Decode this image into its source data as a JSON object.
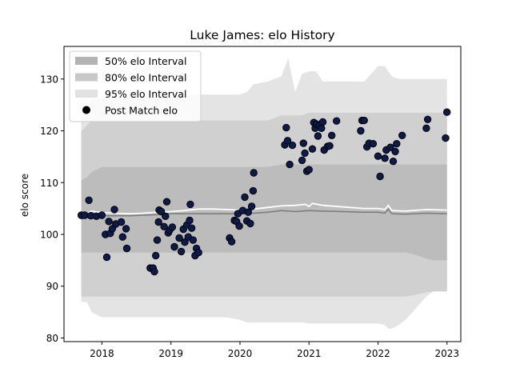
{
  "chart_data": {
    "type": "scatter",
    "title": "Luke James: elo History",
    "xlabel": "",
    "ylabel": "elo score",
    "xlim": [
      2017.45,
      2023.2
    ],
    "ylim": [
      79.3,
      136.3
    ],
    "x_ticks": [
      2018,
      2019,
      2020,
      2021,
      2022,
      2023
    ],
    "x_tick_labels": [
      "2018",
      "2019",
      "2020",
      "2021",
      "2022",
      "2023"
    ],
    "y_ticks": [
      80,
      90,
      100,
      110,
      120,
      130
    ],
    "y_tick_labels": [
      "80",
      "90",
      "100",
      "110",
      "120",
      "130"
    ],
    "grid": false,
    "legend_position": "top-left",
    "legend": [
      {
        "label": "50% elo Interval",
        "swatch": "band",
        "color": "#b3b3b3"
      },
      {
        "label": "80% elo Interval",
        "swatch": "band",
        "color": "#c8c8c8"
      },
      {
        "label": "95% elo Interval",
        "swatch": "band",
        "color": "#e2e2e2"
      },
      {
        "label": "Post Match elo",
        "swatch": "dot",
        "color": "#000000"
      }
    ],
    "colors": {
      "band50": "#bcbcbc",
      "band80": "#d0d0d0",
      "band95": "#e4e4e4",
      "median_line": "#7a7a7a",
      "mean_line": "#ffffff",
      "point_fill": "#0d1b4c",
      "point_edge": "#000000"
    },
    "bands": {
      "x": [
        2017.7,
        2017.78,
        2017.85,
        2018.0,
        2018.1,
        2018.2,
        2018.4,
        2018.6,
        2018.8,
        2019.0,
        2019.2,
        2019.4,
        2019.6,
        2019.8,
        2020.0,
        2020.1,
        2020.2,
        2020.4,
        2020.6,
        2020.7,
        2020.8,
        2020.9,
        2021.0,
        2021.1,
        2021.2,
        2021.3,
        2021.5,
        2021.7,
        2021.8,
        2021.9,
        2022.0,
        2022.1,
        2022.15,
        2022.2,
        2022.3,
        2022.4,
        2022.5,
        2022.6,
        2022.7,
        2022.8,
        2022.9,
        2023.0
      ],
      "p95_low": [
        87.0,
        87.0,
        85.0,
        84.0,
        84.0,
        84.0,
        84.0,
        84.0,
        84.0,
        84.0,
        84.0,
        84.0,
        84.0,
        84.0,
        83.5,
        83.0,
        83.0,
        83.0,
        83.0,
        83.0,
        83.0,
        83.0,
        82.8,
        82.8,
        82.8,
        82.8,
        82.8,
        82.8,
        82.8,
        82.8,
        82.8,
        82.5,
        81.8,
        81.8,
        82.5,
        83.5,
        85.0,
        86.5,
        88.0,
        89.0,
        89.0,
        89.0
      ],
      "p80_low": [
        88.0,
        88.0,
        88.0,
        88.0,
        88.0,
        88.0,
        88.0,
        88.0,
        88.0,
        88.0,
        88.0,
        88.0,
        88.0,
        88.0,
        88.0,
        88.0,
        88.0,
        88.0,
        88.0,
        88.0,
        88.0,
        88.0,
        88.0,
        88.0,
        88.0,
        88.0,
        88.0,
        88.0,
        88.0,
        88.0,
        88.0,
        88.0,
        88.0,
        88.0,
        88.0,
        88.0,
        88.2,
        88.5,
        88.8,
        89.0,
        89.0,
        89.0
      ],
      "p50_low": [
        96.5,
        96.5,
        96.5,
        96.5,
        96.5,
        96.5,
        96.5,
        96.5,
        96.5,
        96.5,
        96.5,
        96.5,
        96.5,
        96.5,
        96.5,
        96.5,
        96.5,
        96.5,
        96.5,
        96.5,
        96.5,
        96.5,
        96.5,
        96.5,
        96.5,
        96.5,
        96.5,
        96.5,
        96.5,
        96.5,
        96.5,
        96.5,
        96.5,
        96.5,
        96.5,
        96.5,
        96.2,
        95.8,
        95.3,
        95.0,
        95.0,
        95.0
      ],
      "p50_high": [
        110.5,
        111.0,
        112.0,
        113.0,
        113.0,
        113.0,
        113.0,
        113.0,
        113.0,
        113.0,
        113.0,
        113.0,
        113.0,
        113.0,
        113.0,
        113.0,
        113.0,
        113.0,
        113.5,
        113.5,
        113.5,
        113.5,
        113.5,
        113.5,
        113.5,
        113.5,
        113.5,
        113.5,
        113.5,
        113.5,
        113.5,
        113.5,
        113.5,
        113.5,
        113.5,
        113.5,
        113.5,
        113.5,
        113.5,
        113.5,
        113.5,
        113.5
      ],
      "p80_high": [
        120.0,
        121.0,
        122.0,
        122.0,
        122.0,
        122.0,
        122.0,
        122.0,
        122.0,
        122.0,
        122.0,
        122.0,
        122.0,
        122.0,
        122.0,
        122.0,
        122.0,
        122.0,
        123.0,
        123.0,
        123.0,
        123.0,
        123.5,
        123.5,
        123.5,
        123.5,
        123.5,
        123.5,
        123.5,
        123.5,
        123.5,
        123.5,
        123.5,
        123.5,
        123.5,
        123.5,
        123.5,
        123.5,
        123.5,
        123.5,
        123.5,
        123.5
      ],
      "p95_high": [
        122.5,
        124.5,
        126.0,
        126.5,
        126.5,
        126.5,
        126.5,
        126.5,
        126.5,
        126.5,
        126.8,
        127.0,
        127.0,
        127.0,
        127.0,
        127.5,
        129.0,
        129.5,
        130.5,
        134.0,
        127.5,
        131.0,
        131.5,
        131.5,
        129.5,
        129.5,
        129.5,
        129.5,
        129.5,
        131.0,
        132.5,
        132.5,
        131.5,
        130.5,
        130.0,
        130.0,
        130.0,
        130.0,
        130.0,
        130.0,
        130.0,
        130.0
      ]
    },
    "median_line": {
      "x": [
        2017.7,
        2017.85,
        2018.0,
        2018.4,
        2018.8,
        2019.0,
        2019.4,
        2019.8,
        2020.0,
        2020.2,
        2020.4,
        2020.6,
        2020.8,
        2021.0,
        2021.2,
        2021.5,
        2021.8,
        2022.0,
        2022.1,
        2022.15,
        2022.2,
        2022.4,
        2022.7,
        2023.0
      ],
      "y": [
        103.0,
        103.4,
        103.6,
        103.6,
        103.8,
        104.0,
        104.0,
        104.0,
        104.0,
        104.1,
        104.3,
        104.6,
        104.4,
        104.6,
        104.5,
        104.4,
        104.3,
        104.3,
        104.1,
        104.9,
        104.0,
        103.9,
        104.1,
        104.0
      ]
    },
    "mean_line": {
      "x": [
        2017.7,
        2017.85,
        2018.0,
        2018.2,
        2018.4,
        2018.6,
        2018.8,
        2019.0,
        2019.2,
        2019.4,
        2019.6,
        2019.8,
        2020.0,
        2020.2,
        2020.4,
        2020.6,
        2020.8,
        2020.95,
        2021.0,
        2021.05,
        2021.2,
        2021.5,
        2021.8,
        2022.0,
        2022.1,
        2022.15,
        2022.2,
        2022.4,
        2022.7,
        2023.0
      ],
      "y": [
        103.5,
        104.5,
        104.2,
        104.1,
        104.0,
        104.1,
        104.3,
        104.4,
        104.6,
        104.9,
        104.9,
        104.8,
        104.7,
        104.9,
        105.2,
        105.5,
        105.6,
        105.8,
        105.4,
        106.0,
        105.6,
        105.3,
        105.0,
        105.0,
        104.8,
        105.6,
        104.6,
        104.5,
        104.8,
        104.7
      ]
    },
    "points": [
      {
        "x": 2017.7,
        "y": 103.7
      },
      {
        "x": 2017.75,
        "y": 103.7
      },
      {
        "x": 2017.81,
        "y": 106.6
      },
      {
        "x": 2017.84,
        "y": 103.6
      },
      {
        "x": 2017.92,
        "y": 103.5
      },
      {
        "x": 2018.0,
        "y": 103.7
      },
      {
        "x": 2018.05,
        "y": 100.0
      },
      {
        "x": 2018.07,
        "y": 95.6
      },
      {
        "x": 2018.1,
        "y": 102.5
      },
      {
        "x": 2018.12,
        "y": 100.2
      },
      {
        "x": 2018.15,
        "y": 101.1
      },
      {
        "x": 2018.18,
        "y": 104.8
      },
      {
        "x": 2018.2,
        "y": 102.0
      },
      {
        "x": 2018.28,
        "y": 102.4
      },
      {
        "x": 2018.3,
        "y": 99.5
      },
      {
        "x": 2018.35,
        "y": 101.1
      },
      {
        "x": 2018.36,
        "y": 97.3
      },
      {
        "x": 2018.7,
        "y": 93.5
      },
      {
        "x": 2018.74,
        "y": 93.5
      },
      {
        "x": 2018.76,
        "y": 92.8
      },
      {
        "x": 2018.78,
        "y": 95.9
      },
      {
        "x": 2018.8,
        "y": 98.9
      },
      {
        "x": 2018.82,
        "y": 102.4
      },
      {
        "x": 2018.83,
        "y": 104.7
      },
      {
        "x": 2018.86,
        "y": 104.4
      },
      {
        "x": 2018.9,
        "y": 101.5
      },
      {
        "x": 2018.92,
        "y": 103.5
      },
      {
        "x": 2018.94,
        "y": 106.3
      },
      {
        "x": 2018.96,
        "y": 100.3
      },
      {
        "x": 2018.98,
        "y": 100.8
      },
      {
        "x": 2019.02,
        "y": 101.4
      },
      {
        "x": 2019.05,
        "y": 97.6
      },
      {
        "x": 2019.12,
        "y": 99.3
      },
      {
        "x": 2019.15,
        "y": 96.7
      },
      {
        "x": 2019.18,
        "y": 101.0
      },
      {
        "x": 2019.2,
        "y": 98.5
      },
      {
        "x": 2019.23,
        "y": 101.8
      },
      {
        "x": 2019.25,
        "y": 99.5
      },
      {
        "x": 2019.27,
        "y": 102.7
      },
      {
        "x": 2019.28,
        "y": 105.8
      },
      {
        "x": 2019.3,
        "y": 101.2
      },
      {
        "x": 2019.32,
        "y": 98.9
      },
      {
        "x": 2019.35,
        "y": 95.9
      },
      {
        "x": 2019.37,
        "y": 97.3
      },
      {
        "x": 2019.4,
        "y": 96.5
      },
      {
        "x": 2019.85,
        "y": 99.3
      },
      {
        "x": 2019.88,
        "y": 98.6
      },
      {
        "x": 2019.92,
        "y": 102.7
      },
      {
        "x": 2019.95,
        "y": 102.5
      },
      {
        "x": 2019.97,
        "y": 104.0
      },
      {
        "x": 2019.99,
        "y": 101.6
      },
      {
        "x": 2020.04,
        "y": 104.6
      },
      {
        "x": 2020.07,
        "y": 107.2
      },
      {
        "x": 2020.1,
        "y": 102.6
      },
      {
        "x": 2020.12,
        "y": 104.3
      },
      {
        "x": 2020.15,
        "y": 102.1
      },
      {
        "x": 2020.17,
        "y": 105.4
      },
      {
        "x": 2020.19,
        "y": 108.4
      },
      {
        "x": 2020.2,
        "y": 111.9
      },
      {
        "x": 2020.65,
        "y": 117.3
      },
      {
        "x": 2020.67,
        "y": 120.6
      },
      {
        "x": 2020.69,
        "y": 118.1
      },
      {
        "x": 2020.72,
        "y": 113.5
      },
      {
        "x": 2020.76,
        "y": 117.2
      },
      {
        "x": 2020.9,
        "y": 114.3
      },
      {
        "x": 2020.92,
        "y": 117.6
      },
      {
        "x": 2020.94,
        "y": 115.7
      },
      {
        "x": 2020.97,
        "y": 112.2
      },
      {
        "x": 2021.0,
        "y": 112.5
      },
      {
        "x": 2021.05,
        "y": 116.5
      },
      {
        "x": 2021.07,
        "y": 121.6
      },
      {
        "x": 2021.09,
        "y": 120.5
      },
      {
        "x": 2021.11,
        "y": 121.3
      },
      {
        "x": 2021.13,
        "y": 119.0
      },
      {
        "x": 2021.15,
        "y": 121.0
      },
      {
        "x": 2021.18,
        "y": 120.5
      },
      {
        "x": 2021.2,
        "y": 121.7
      },
      {
        "x": 2021.22,
        "y": 116.3
      },
      {
        "x": 2021.27,
        "y": 117.0
      },
      {
        "x": 2021.3,
        "y": 117.1
      },
      {
        "x": 2021.33,
        "y": 119.1
      },
      {
        "x": 2021.4,
        "y": 121.9
      },
      {
        "x": 2021.75,
        "y": 120.0
      },
      {
        "x": 2021.77,
        "y": 122.0
      },
      {
        "x": 2021.8,
        "y": 122.0
      },
      {
        "x": 2021.84,
        "y": 116.9
      },
      {
        "x": 2021.87,
        "y": 117.6
      },
      {
        "x": 2021.93,
        "y": 117.5
      },
      {
        "x": 2022.0,
        "y": 115.1
      },
      {
        "x": 2022.03,
        "y": 111.2
      },
      {
        "x": 2022.1,
        "y": 114.7
      },
      {
        "x": 2022.12,
        "y": 116.3
      },
      {
        "x": 2022.18,
        "y": 116.8
      },
      {
        "x": 2022.22,
        "y": 114.1
      },
      {
        "x": 2022.25,
        "y": 116.0
      },
      {
        "x": 2022.27,
        "y": 117.5
      },
      {
        "x": 2022.35,
        "y": 119.1
      },
      {
        "x": 2022.7,
        "y": 120.5
      },
      {
        "x": 2022.72,
        "y": 122.2
      },
      {
        "x": 2022.98,
        "y": 118.6
      },
      {
        "x": 2023.0,
        "y": 123.6
      }
    ]
  }
}
